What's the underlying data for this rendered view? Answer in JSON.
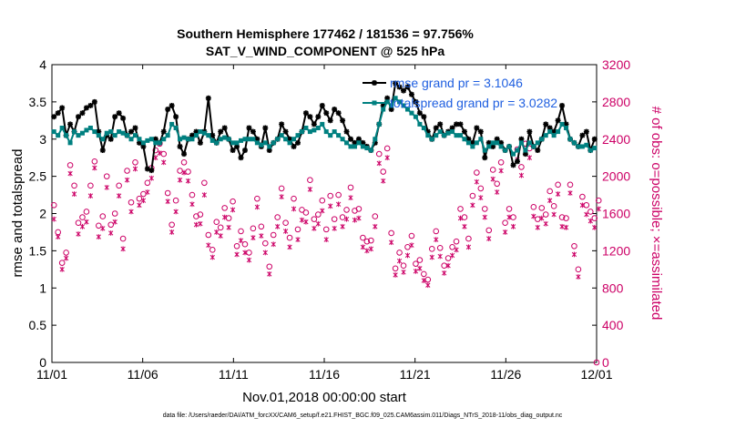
{
  "chart_data": {
    "type": "line",
    "title": "Southern Hemisphere 177462 / 181536 = 97.756%",
    "subtitle": "SAT_V_WIND_COMPONENT @ 525 hPa",
    "xlabel": "Nov.01,2018 00:00:00 start",
    "ylabel": "rmse and totalspread",
    "ylabel_right": "# of obs: o=possible; ×=assimilated",
    "x_ticks": [
      "11/01",
      "11/06",
      "11/11",
      "11/16",
      "11/21",
      "11/26",
      "12/01"
    ],
    "x_range": [
      0,
      30
    ],
    "ylim": [
      0,
      4
    ],
    "y_ticks": [
      "0",
      "0.5",
      "1",
      "1.5",
      "2",
      "2.5",
      "3",
      "3.5",
      "4"
    ],
    "ylim_right": [
      0,
      3200
    ],
    "y_ticks_right": [
      "0",
      "400",
      "800",
      "1200",
      "1600",
      "2000",
      "2400",
      "2800",
      "3200"
    ],
    "legend_position": "top-right",
    "footer": "data file: /Users/raeder/DAI/ATM_forcXX/CAM6_setup/f.e21.FHIST_BGC.f09_025.CAM6assim.011/Diags_NTrS_2018-11/obs_diag_output.nc",
    "colors": {
      "rmse": "#000000",
      "spread": "#008080",
      "obs": "#cc0066",
      "legend_text": "#1f5fe0"
    },
    "series": [
      {
        "name": "rmse grand pr = 3.1046",
        "axis": "left",
        "values": [
          3.3,
          3.35,
          3.42,
          3.05,
          3.2,
          3.1,
          3.3,
          3.35,
          3.42,
          3.45,
          3.5,
          3.1,
          2.85,
          3.05,
          3.0,
          3.3,
          3.35,
          3.28,
          3.05,
          3.1,
          3.15,
          2.95,
          2.9,
          2.6,
          2.58,
          3.0,
          2.95,
          3.1,
          3.4,
          3.45,
          3.3,
          2.9,
          2.8,
          3.0,
          3.05,
          3.1,
          2.95,
          3.1,
          3.55,
          3.05,
          2.95,
          3.1,
          3.15,
          3.0,
          2.85,
          2.9,
          2.75,
          2.85,
          3.15,
          3.1,
          3.0,
          2.9,
          3.15,
          2.85,
          2.95,
          3.0,
          3.2,
          3.1,
          3.0,
          2.9,
          2.95,
          3.1,
          3.35,
          3.3,
          3.2,
          3.3,
          3.45,
          3.35,
          3.25,
          3.4,
          3.35,
          3.25,
          3.1,
          3.0,
          2.95,
          3.0,
          2.95,
          2.9,
          2.85,
          2.95,
          3.2,
          3.45,
          3.55,
          3.4,
          3.75,
          3.7,
          3.65,
          3.7,
          3.6,
          3.5,
          3.35,
          3.3,
          3.1,
          3.0,
          3.15,
          3.2,
          3.05,
          3.1,
          3.15,
          3.2,
          3.2,
          3.1,
          3.0,
          2.95,
          3.15,
          3.1,
          2.75,
          2.95,
          2.9,
          3.0,
          2.95,
          2.85,
          2.9,
          2.65,
          2.7,
          3.0,
          2.8,
          3.1,
          2.9,
          2.85,
          3.0,
          3.2,
          3.15,
          3.1,
          3.25,
          3.45,
          3.2,
          3.0,
          2.95,
          2.9,
          3.05,
          3.1,
          2.85,
          3.0
        ]
      },
      {
        "name": "totalspread grand pr = 3.0282",
        "axis": "left",
        "values": [
          3.1,
          3.05,
          3.15,
          3.05,
          2.95,
          3.1,
          3.05,
          3.08,
          3.12,
          3.15,
          3.1,
          3.05,
          3.0,
          3.08,
          3.1,
          3.05,
          3.1,
          3.08,
          3.05,
          3.0,
          3.05,
          3.0,
          2.95,
          2.98,
          3.0,
          2.95,
          2.95,
          3.0,
          3.05,
          3.2,
          3.15,
          3.0,
          3.02,
          3.0,
          3.0,
          3.05,
          3.1,
          3.08,
          3.05,
          2.98,
          2.95,
          3.0,
          3.02,
          3.0,
          2.95,
          2.95,
          2.98,
          3.0,
          3.0,
          3.0,
          2.95,
          2.92,
          2.95,
          2.9,
          2.95,
          3.0,
          3.05,
          3.0,
          2.95,
          3.0,
          3.05,
          3.1,
          3.15,
          3.1,
          3.12,
          3.15,
          3.2,
          3.1,
          3.05,
          3.1,
          3.05,
          3.0,
          2.95,
          2.9,
          2.9,
          2.95,
          2.9,
          2.88,
          2.85,
          3.0,
          3.2,
          3.4,
          3.5,
          3.45,
          3.55,
          3.5,
          3.45,
          3.4,
          3.35,
          3.3,
          3.2,
          3.15,
          3.05,
          3.0,
          3.05,
          3.1,
          3.05,
          3.08,
          3.1,
          3.05,
          3.05,
          3.0,
          2.95,
          2.9,
          2.95,
          3.0,
          2.85,
          2.9,
          2.95,
          2.95,
          2.9,
          2.85,
          2.9,
          2.8,
          2.85,
          2.95,
          2.85,
          2.95,
          2.9,
          2.95,
          3.0,
          3.05,
          3.1,
          3.05,
          3.1,
          3.2,
          3.15,
          3.0,
          2.95,
          2.9,
          2.9,
          2.92,
          2.85,
          2.88
        ]
      },
      {
        "name": "possible",
        "axis": "right",
        "marker": "circle",
        "values": [
          1690,
          1400,
          1070,
          1180,
          2120,
          1900,
          1500,
          1560,
          1620,
          1900,
          2160,
          1470,
          1570,
          2000,
          1480,
          1600,
          1900,
          1330,
          2060,
          1720,
          2150,
          1760,
          1810,
          1930,
          2090,
          2280,
          2350,
          2240,
          1820,
          1480,
          1740,
          2060,
          2150,
          2050,
          1800,
          1570,
          1590,
          1930,
          1370,
          1210,
          1510,
          1450,
          1660,
          1550,
          1730,
          1250,
          1410,
          1270,
          1180,
          1440,
          1760,
          1460,
          1280,
          1030,
          1370,
          1560,
          1870,
          1500,
          1340,
          1760,
          1430,
          1640,
          1610,
          1960,
          1540,
          1590,
          1740,
          1430,
          1790,
          1540,
          1800,
          1560,
          1640,
          1880,
          1630,
          1650,
          1340,
          1300,
          1310,
          1570,
          2240,
          2050,
          2300,
          1390,
          1010,
          1180,
          1040,
          1240,
          1360,
          1060,
          1100,
          950,
          890,
          1220,
          1410,
          1230,
          1040,
          1120,
          1240,
          1300,
          1650,
          1560,
          1330,
          1790,
          2040,
          1870,
          1650,
          1420,
          2070,
          1920,
          2150,
          1500,
          1650,
          1560,
          2290,
          2100,
          2350,
          2300,
          1670,
          1540,
          1660,
          1590,
          1840,
          1680,
          1910,
          1560,
          1550,
          1910,
          1250,
          1000,
          1780,
          1690,
          1620,
          1550,
          1740
        ]
      },
      {
        "name": "assimilated",
        "axis": "right",
        "marker": "x",
        "values": [
          1540,
          1350,
          1000,
          1120,
          2030,
          1810,
          1380,
          1460,
          1510,
          1790,
          2090,
          1350,
          1440,
          1880,
          1390,
          1510,
          1790,
          1220,
          1960,
          1620,
          2080,
          1690,
          1740,
          1830,
          1980,
          2200,
          2250,
          2150,
          1730,
          1400,
          1620,
          1960,
          2040,
          1950,
          1700,
          1480,
          1490,
          1800,
          1260,
          1130,
          1400,
          1360,
          1560,
          1450,
          1640,
          1160,
          1310,
          1180,
          1100,
          1340,
          1670,
          1360,
          1180,
          950,
          1270,
          1460,
          1780,
          1410,
          1240,
          1650,
          1320,
          1530,
          1510,
          1860,
          1440,
          1490,
          1630,
          1320,
          1680,
          1440,
          1700,
          1460,
          1540,
          1770,
          1530,
          1550,
          1240,
          1200,
          1220,
          1460,
          2140,
          1950,
          2200,
          1290,
          940,
          1090,
          970,
          1150,
          1260,
          980,
          1010,
          880,
          830,
          1130,
          1320,
          1140,
          960,
          1040,
          1150,
          1210,
          1550,
          1460,
          1240,
          1690,
          1940,
          1770,
          1560,
          1330,
          1970,
          1830,
          2060,
          1400,
          1560,
          1460,
          2180,
          2010,
          2250,
          2200,
          1570,
          1450,
          1550,
          1490,
          1740,
          1590,
          1810,
          1460,
          1450,
          1820,
          1160,
          920,
          1690,
          1590,
          1520,
          1450,
          1650
        ]
      }
    ]
  }
}
